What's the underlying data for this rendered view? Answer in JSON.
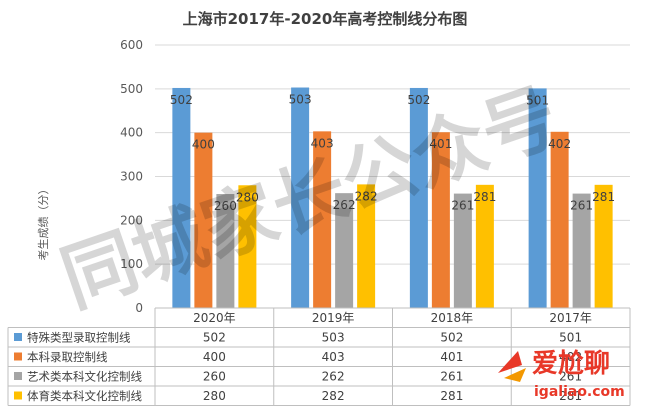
{
  "chart_data": {
    "type": "bar",
    "title": "上海市2017年-2020年高考控制线分布图",
    "ylabel": "考生成绩（分）",
    "xlabel": "",
    "ylim": [
      0,
      600
    ],
    "yticks": [
      0,
      100,
      200,
      300,
      400,
      500,
      600
    ],
    "categories": [
      "2020年",
      "2019年",
      "2018年",
      "2017年"
    ],
    "series": [
      {
        "name": "特殊类型录取控制线",
        "color": "#5B9BD5",
        "values": [
          502,
          503,
          502,
          501
        ]
      },
      {
        "name": "本科录取控制线",
        "color": "#ED7D31",
        "values": [
          400,
          403,
          401,
          402
        ]
      },
      {
        "name": "艺术类本科文化控制线",
        "color": "#A5A5A5",
        "values": [
          260,
          262,
          261,
          261
        ]
      },
      {
        "name": "体育类本科文化控制线",
        "color": "#FFC000",
        "values": [
          280,
          282,
          281,
          281
        ]
      }
    ],
    "grid": true,
    "legend": "data-table-bottom"
  },
  "watermark": {
    "main": "同城家长公众号",
    "logo_text": "爱尬聊",
    "logo_url": "igaliao.com"
  }
}
